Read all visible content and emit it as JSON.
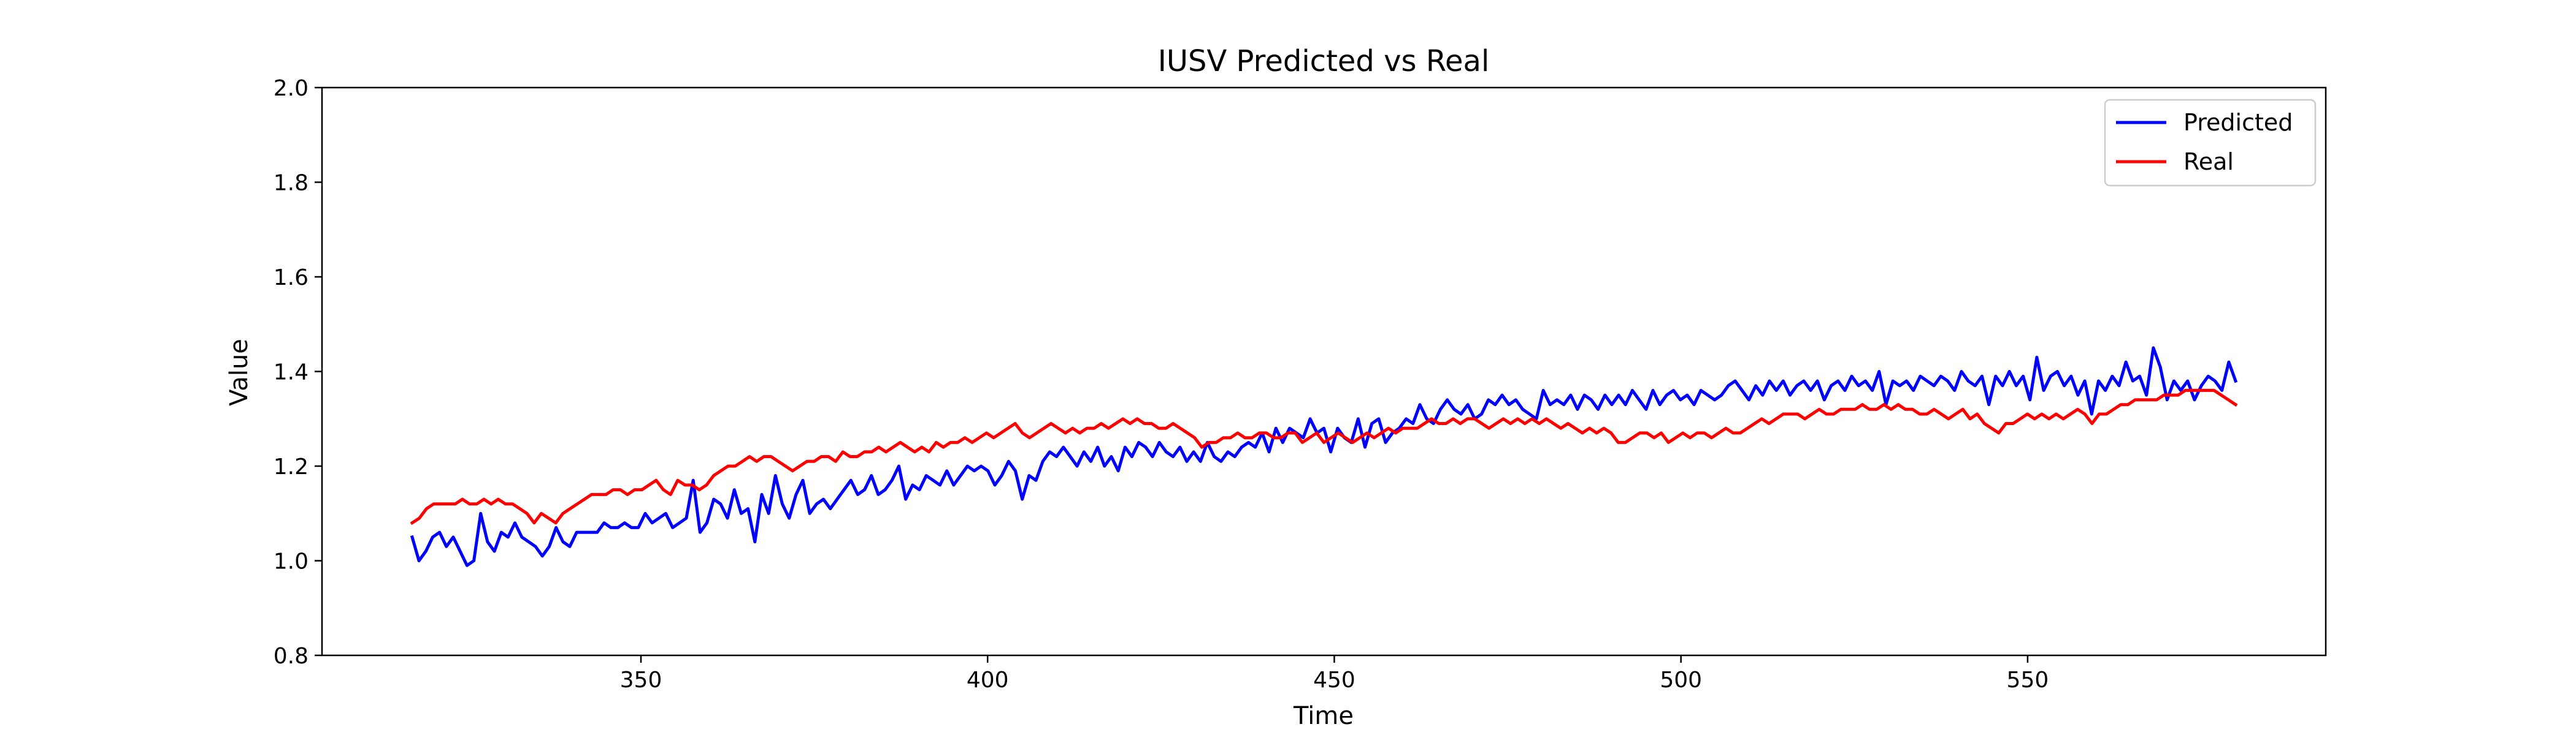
{
  "chart_data": {
    "type": "line",
    "title": "IUSV Predicted vs Real",
    "xlabel": "Time",
    "ylabel": "Value",
    "xlim": [
      304,
      593
    ],
    "ylim": [
      0.8,
      2.0
    ],
    "xticks": [
      350,
      400,
      450,
      500,
      550
    ],
    "yticks": [
      0.8,
      1.0,
      1.2,
      1.4,
      1.6,
      1.8,
      2.0
    ],
    "xtick_labels": [
      "350",
      "400",
      "450",
      "500",
      "550"
    ],
    "ytick_labels": [
      "0.8",
      "1.0",
      "1.2",
      "1.4",
      "1.6",
      "1.8",
      "2.0"
    ],
    "grid": false,
    "legend_position": "top-right",
    "x_start": 317,
    "x_end": 580,
    "series": [
      {
        "name": "Predicted",
        "color": "#0000ff",
        "values": [
          1.05,
          1.0,
          1.02,
          1.05,
          1.06,
          1.03,
          1.05,
          1.02,
          0.99,
          1.0,
          1.1,
          1.04,
          1.02,
          1.06,
          1.05,
          1.08,
          1.05,
          1.04,
          1.03,
          1.01,
          1.03,
          1.07,
          1.04,
          1.03,
          1.06,
          1.06,
          1.06,
          1.06,
          1.08,
          1.07,
          1.07,
          1.08,
          1.07,
          1.07,
          1.1,
          1.08,
          1.09,
          1.1,
          1.07,
          1.08,
          1.09,
          1.17,
          1.06,
          1.08,
          1.13,
          1.12,
          1.09,
          1.15,
          1.1,
          1.11,
          1.04,
          1.14,
          1.1,
          1.18,
          1.12,
          1.09,
          1.14,
          1.17,
          1.1,
          1.12,
          1.13,
          1.11,
          1.13,
          1.15,
          1.17,
          1.14,
          1.15,
          1.18,
          1.14,
          1.15,
          1.17,
          1.2,
          1.13,
          1.16,
          1.15,
          1.18,
          1.17,
          1.16,
          1.19,
          1.16,
          1.18,
          1.2,
          1.19,
          1.2,
          1.19,
          1.16,
          1.18,
          1.21,
          1.19,
          1.13,
          1.18,
          1.17,
          1.21,
          1.23,
          1.22,
          1.24,
          1.22,
          1.2,
          1.23,
          1.21,
          1.24,
          1.2,
          1.22,
          1.19,
          1.24,
          1.22,
          1.25,
          1.24,
          1.22,
          1.25,
          1.23,
          1.22,
          1.24,
          1.21,
          1.23,
          1.21,
          1.25,
          1.22,
          1.21,
          1.23,
          1.22,
          1.24,
          1.25,
          1.24,
          1.27,
          1.23,
          1.28,
          1.25,
          1.28,
          1.27,
          1.26,
          1.3,
          1.27,
          1.28,
          1.23,
          1.28,
          1.26,
          1.25,
          1.3,
          1.24,
          1.29,
          1.3,
          1.25,
          1.27,
          1.28,
          1.3,
          1.29,
          1.33,
          1.3,
          1.29,
          1.32,
          1.34,
          1.32,
          1.31,
          1.33,
          1.3,
          1.31,
          1.34,
          1.33,
          1.35,
          1.33,
          1.34,
          1.32,
          1.31,
          1.3,
          1.36,
          1.33,
          1.34,
          1.33,
          1.35,
          1.32,
          1.35,
          1.34,
          1.32,
          1.35,
          1.33,
          1.35,
          1.33,
          1.36,
          1.34,
          1.32,
          1.36,
          1.33,
          1.35,
          1.36,
          1.34,
          1.35,
          1.33,
          1.36,
          1.35,
          1.34,
          1.35,
          1.37,
          1.38,
          1.36,
          1.34,
          1.37,
          1.35,
          1.38,
          1.36,
          1.38,
          1.35,
          1.37,
          1.38,
          1.36,
          1.38,
          1.34,
          1.37,
          1.38,
          1.36,
          1.39,
          1.37,
          1.38,
          1.36,
          1.4,
          1.33,
          1.38,
          1.37,
          1.38,
          1.36,
          1.39,
          1.38,
          1.37,
          1.39,
          1.38,
          1.36,
          1.4,
          1.38,
          1.37,
          1.39,
          1.33,
          1.39,
          1.37,
          1.4,
          1.37,
          1.39,
          1.34,
          1.43,
          1.36,
          1.39,
          1.4,
          1.37,
          1.39,
          1.35,
          1.38,
          1.31,
          1.38,
          1.36,
          1.39,
          1.37,
          1.42,
          1.38,
          1.39,
          1.35,
          1.45,
          1.41,
          1.34,
          1.38,
          1.36,
          1.38,
          1.34,
          1.37,
          1.39,
          1.38,
          1.36,
          1.42,
          1.38
        ]
      },
      {
        "name": "Real",
        "color": "#ff0000",
        "values": [
          1.08,
          1.09,
          1.11,
          1.12,
          1.12,
          1.12,
          1.12,
          1.13,
          1.12,
          1.12,
          1.13,
          1.12,
          1.13,
          1.12,
          1.12,
          1.11,
          1.1,
          1.08,
          1.1,
          1.09,
          1.08,
          1.1,
          1.11,
          1.12,
          1.13,
          1.14,
          1.14,
          1.14,
          1.15,
          1.15,
          1.14,
          1.15,
          1.15,
          1.16,
          1.17,
          1.15,
          1.14,
          1.17,
          1.16,
          1.16,
          1.15,
          1.16,
          1.18,
          1.19,
          1.2,
          1.2,
          1.21,
          1.22,
          1.21,
          1.22,
          1.22,
          1.21,
          1.2,
          1.19,
          1.2,
          1.21,
          1.21,
          1.22,
          1.22,
          1.21,
          1.23,
          1.22,
          1.22,
          1.23,
          1.23,
          1.24,
          1.23,
          1.24,
          1.25,
          1.24,
          1.23,
          1.24,
          1.23,
          1.25,
          1.24,
          1.25,
          1.25,
          1.26,
          1.25,
          1.26,
          1.27,
          1.26,
          1.27,
          1.28,
          1.29,
          1.27,
          1.26,
          1.27,
          1.28,
          1.29,
          1.28,
          1.27,
          1.28,
          1.27,
          1.28,
          1.28,
          1.29,
          1.28,
          1.29,
          1.3,
          1.29,
          1.3,
          1.29,
          1.29,
          1.28,
          1.28,
          1.29,
          1.28,
          1.27,
          1.26,
          1.24,
          1.25,
          1.25,
          1.26,
          1.26,
          1.27,
          1.26,
          1.26,
          1.27,
          1.27,
          1.26,
          1.26,
          1.27,
          1.27,
          1.25,
          1.26,
          1.27,
          1.25,
          1.26,
          1.27,
          1.26,
          1.25,
          1.26,
          1.27,
          1.26,
          1.27,
          1.28,
          1.27,
          1.28,
          1.28,
          1.28,
          1.29,
          1.3,
          1.29,
          1.29,
          1.3,
          1.29,
          1.3,
          1.3,
          1.29,
          1.28,
          1.29,
          1.3,
          1.29,
          1.3,
          1.29,
          1.3,
          1.29,
          1.3,
          1.29,
          1.28,
          1.29,
          1.28,
          1.27,
          1.28,
          1.27,
          1.28,
          1.27,
          1.25,
          1.25,
          1.26,
          1.27,
          1.27,
          1.26,
          1.27,
          1.25,
          1.26,
          1.27,
          1.26,
          1.27,
          1.27,
          1.26,
          1.27,
          1.28,
          1.27,
          1.27,
          1.28,
          1.29,
          1.3,
          1.29,
          1.3,
          1.31,
          1.31,
          1.31,
          1.3,
          1.31,
          1.32,
          1.31,
          1.31,
          1.32,
          1.32,
          1.32,
          1.33,
          1.32,
          1.32,
          1.33,
          1.32,
          1.33,
          1.32,
          1.32,
          1.31,
          1.31,
          1.32,
          1.31,
          1.3,
          1.31,
          1.32,
          1.3,
          1.31,
          1.29,
          1.28,
          1.27,
          1.29,
          1.29,
          1.3,
          1.31,
          1.3,
          1.31,
          1.3,
          1.31,
          1.3,
          1.31,
          1.32,
          1.31,
          1.29,
          1.31,
          1.31,
          1.32,
          1.33,
          1.33,
          1.34,
          1.34,
          1.34,
          1.34,
          1.35,
          1.35,
          1.35,
          1.36,
          1.36,
          1.36,
          1.36,
          1.36,
          1.35,
          1.34,
          1.33
        ]
      }
    ]
  }
}
